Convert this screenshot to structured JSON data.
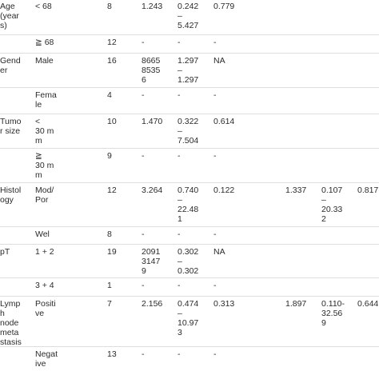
{
  "rows": [
    {
      "cells": [
        "Age\n(year\ns)",
        "< 68",
        "8",
        "1.243",
        "0.242\n–\n5.427",
        "0.779",
        "",
        "",
        ""
      ]
    },
    {
      "cells": [
        "",
        "≧ 68",
        "12",
        "-",
        "-",
        "-",
        "",
        "",
        ""
      ]
    },
    {
      "cells": [
        "Gend\ner",
        "Male",
        "16",
        "8665\n8535\n6",
        "1.297\n–\n1.297",
        "NA",
        "",
        "",
        ""
      ]
    },
    {
      "cells": [
        "",
        "Fema\nle",
        "4",
        "-",
        "-",
        "-",
        "",
        "",
        ""
      ]
    },
    {
      "cells": [
        "Tumo\nr size",
        "<\n30 m\nm",
        "10",
        "1.470",
        "0.322\n–\n7.504",
        "0.614",
        "",
        "",
        ""
      ]
    },
    {
      "cells": [
        "",
        "≧\n30 m\nm",
        "9",
        "-",
        "-",
        "-",
        "",
        "",
        ""
      ]
    },
    {
      "cells": [
        "Histol\nogy",
        "Mod/\nPor",
        "12",
        "3.264",
        "0.740\n–\n22.48\n1",
        "0.122",
        "1.337",
        "0.107\n–\n20.33\n2",
        "0.817"
      ]
    },
    {
      "cells": [
        "",
        "Wel",
        "8",
        "-",
        "-",
        "-",
        "",
        "",
        ""
      ]
    },
    {
      "cells": [
        "pT",
        "1 + 2",
        "19",
        "2091\n3147\n9",
        "0.302\n–\n0.302",
        "NA",
        "",
        "",
        ""
      ]
    },
    {
      "cells": [
        "",
        "3 + 4",
        "1",
        "-",
        "-",
        "-",
        "",
        "",
        ""
      ]
    },
    {
      "cells": [
        "Lymp\nh\nnode\nmeta\nstasis",
        "Positi\nve",
        "7",
        "2.156",
        "0.474\n–\n10.97\n3",
        "0.313",
        "1.897",
        "0.110-\n32.56\n9",
        "0.644"
      ]
    },
    {
      "cells": [
        "",
        "Negat\nive",
        "13",
        "-",
        "-",
        "-",
        "",
        "",
        ""
      ]
    }
  ]
}
